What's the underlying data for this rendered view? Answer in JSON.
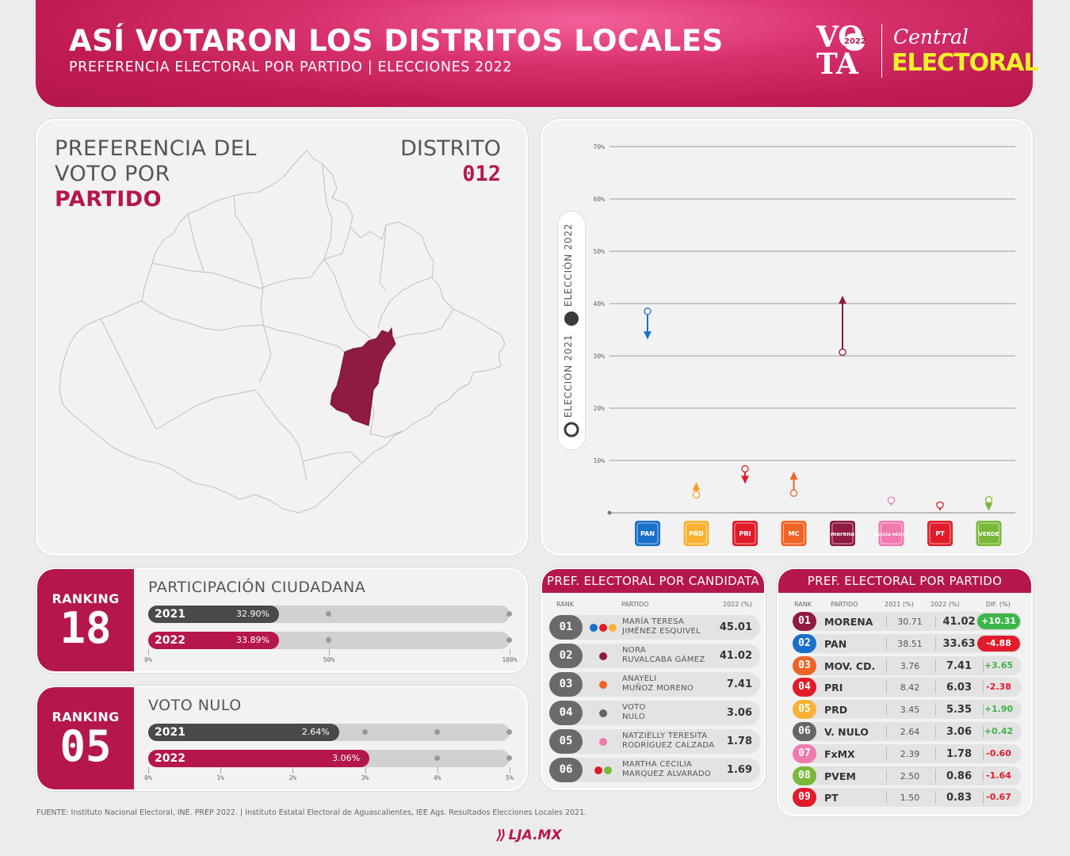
{
  "header": {
    "title": "ASÍ VOTARON LOS DISTRITOS LOCALES",
    "subtitle": "PREFERENCIA ELECTORAL POR PARTIDO | ELECCIONES 2022",
    "logo_vota_top": "VO",
    "logo_vota_bottom": "TA",
    "logo_year": "2022",
    "logo_central": "Central",
    "logo_electoral": "ELECTORAL"
  },
  "map_card": {
    "title_line1": "PREFERENCIA DEL",
    "title_line2": "VOTO POR",
    "title_accent": "PARTIDO",
    "district_label": "DISTRITO",
    "district_number": "012",
    "highlight_color": "#8f1a42"
  },
  "chart_data": {
    "type": "scatter",
    "title": "",
    "xlabel": "",
    "ylabel": "",
    "ylim": [
      0,
      70
    ],
    "yticks": [
      "10%",
      "20%",
      "30%",
      "40%",
      "50%",
      "60%",
      "70%"
    ],
    "legend": {
      "e2022": "ELECCIÓN 2022",
      "e2021": "ELECCIÓN 2021",
      "placement": "left"
    },
    "categories": [
      "PAN",
      "PRD",
      "PRI",
      "MOV. CD.",
      "morena",
      "FUERZA MÉXICO",
      "PT",
      "VERDE"
    ],
    "series": [
      {
        "name": "ELECCIÓN 2021",
        "values": [
          38.51,
          3.45,
          8.42,
          3.76,
          30.71,
          2.39,
          1.5,
          2.5
        ]
      },
      {
        "name": "ELECCIÓN 2022",
        "values": [
          33.63,
          5.35,
          6.03,
          7.41,
          41.02,
          1.78,
          0.83,
          0.86
        ]
      }
    ],
    "colors": [
      "#1a6fc9",
      "#f39c2a",
      "#e01c2b",
      "#f06425",
      "#8f1a42",
      "#f07ab0",
      "#e01c2b",
      "#79b83a"
    ]
  },
  "party_logos": [
    {
      "label": "PAN",
      "bg": "#1a6fc9",
      "fg": "#ffffff"
    },
    {
      "label": "PRD",
      "bg": "#f9b233",
      "fg": "#ffffff"
    },
    {
      "label": "PRI",
      "bg": "#e01c2b",
      "fg": "#ffffff"
    },
    {
      "label": "MC",
      "bg": "#f06425",
      "fg": "#ffffff"
    },
    {
      "label": "morena",
      "bg": "#8f1a42",
      "fg": "#ffffff"
    },
    {
      "label": "FUERZA MÉXICO",
      "bg": "#f07ab0",
      "fg": "#ffffff"
    },
    {
      "label": "PT",
      "bg": "#e01c2b",
      "fg": "#ffffff"
    },
    {
      "label": "VERDE",
      "bg": "#79b83a",
      "fg": "#ffffff"
    }
  ],
  "participation": {
    "ranking_label": "RANKING",
    "ranking": "18",
    "title": "PARTICIPACIÓN CIUDADANA",
    "bars": [
      {
        "year": "2021",
        "value_label": "32.90%",
        "value": 32.9,
        "color": "#4a4a4a"
      },
      {
        "year": "2022",
        "value_label": "33.89%",
        "value": 33.89,
        "color": "#b5174a"
      }
    ],
    "axis": [
      "0%",
      "50%",
      "100%"
    ],
    "max": 100
  },
  "null_vote": {
    "ranking_label": "RANKING",
    "ranking": "05",
    "title": "VOTO NULO",
    "bars": [
      {
        "year": "2021",
        "value_label": "2.64%",
        "value": 2.64,
        "color": "#4a4a4a"
      },
      {
        "year": "2022",
        "value_label": "3.06%",
        "value": 3.06,
        "color": "#b5174a"
      }
    ],
    "axis": [
      "0%",
      "1%",
      "2%",
      "3%",
      "4%",
      "5%"
    ],
    "max": 5
  },
  "candidates": {
    "title": "PREF. ELECTORAL POR CANDIDATA",
    "col_rank": "RANK",
    "col_party": "PARTIDO",
    "col_value": "2022 (%)",
    "rows": [
      {
        "rank": "01",
        "line1": "MARÍA TERESA",
        "line2": "JIMÉNEZ ESQUIVEL",
        "value": "45.01",
        "dots": [
          "#1a6fc9",
          "#e01c2b",
          "#f9b233"
        ]
      },
      {
        "rank": "02",
        "line1": "NORA",
        "line2": "RUVALCABA GÁMEZ",
        "value": "41.02",
        "dots": [
          "#8f1a42"
        ]
      },
      {
        "rank": "03",
        "line1": "ANAYELI",
        "line2": "MUÑOZ MORENO",
        "value": "7.41",
        "dots": [
          "#f06425"
        ]
      },
      {
        "rank": "04",
        "line1": "VOTO",
        "line2": "NULO",
        "value": "3.06",
        "dots": [
          "#666666"
        ]
      },
      {
        "rank": "05",
        "line1": "NATZIELLY TERESITA",
        "line2": "RODRÍGUEZ CALZADA",
        "value": "1.78",
        "dots": [
          "#f07ab0"
        ]
      },
      {
        "rank": "06",
        "line1": "MARTHA CECILIA",
        "line2": "MARQUEZ ALVARADO",
        "value": "1.69",
        "dots": [
          "#e01c2b",
          "#79b83a"
        ]
      }
    ]
  },
  "parties": {
    "title": "PREF. ELECTORAL POR PARTIDO",
    "col_rank": "RANK",
    "col_party": "PARTIDO",
    "col_2021": "2021 (%)",
    "col_2022": "2022 (%)",
    "col_dif": "DIF. (%)",
    "rows": [
      {
        "rank": "01",
        "party": "MORENA",
        "v2021": "30.71",
        "v2022": "41.02",
        "dif": "+10.31",
        "color": "#8f1a42",
        "dif_style": "pos-strong"
      },
      {
        "rank": "02",
        "party": "PAN",
        "v2021": "38.51",
        "v2022": "33.63",
        "dif": "-4.88",
        "color": "#1a6fc9",
        "dif_style": "neg-strong"
      },
      {
        "rank": "03",
        "party": "MOV. CD.",
        "v2021": "3.76",
        "v2022": "7.41",
        "dif": "+3.65",
        "color": "#f06425",
        "dif_style": "pos"
      },
      {
        "rank": "04",
        "party": "PRI",
        "v2021": "8.42",
        "v2022": "6.03",
        "dif": "-2.38",
        "color": "#e01c2b",
        "dif_style": "neg"
      },
      {
        "rank": "05",
        "party": "PRD",
        "v2021": "3.45",
        "v2022": "5.35",
        "dif": "+1.90",
        "color": "#f9b233",
        "dif_style": "pos"
      },
      {
        "rank": "06",
        "party": "V. NULO",
        "v2021": "2.64",
        "v2022": "3.06",
        "dif": "+0.42",
        "color": "#666666",
        "dif_style": "pos"
      },
      {
        "rank": "07",
        "party": "FxMX",
        "v2021": "2.39",
        "v2022": "1.78",
        "dif": "-0.60",
        "color": "#f07ab0",
        "dif_style": "neg"
      },
      {
        "rank": "08",
        "party": "PVEM",
        "v2021": "2.50",
        "v2022": "0.86",
        "dif": "-1.64",
        "color": "#79b83a",
        "dif_style": "neg"
      },
      {
        "rank": "09",
        "party": "PT",
        "v2021": "1.50",
        "v2022": "0.83",
        "dif": "-0.67",
        "color": "#e01c2b",
        "dif_style": "neg"
      }
    ]
  },
  "footer": {
    "source": "FUENTE: Instituto Nacional Electoral, INE. PREP 2022. | Instituto Estatal Electoral de Aguascalientes, IEE Ags. Resultados Elecciones Locales 2021.",
    "brand": "LJA.MX"
  }
}
